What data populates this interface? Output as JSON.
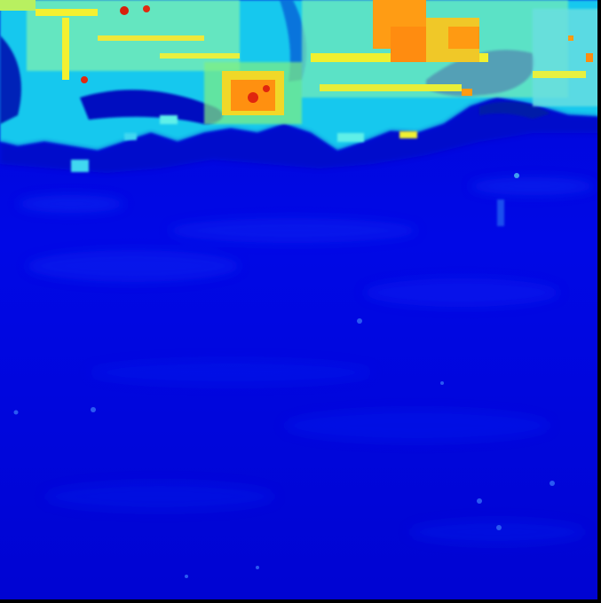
{
  "image": {
    "colormap": "jet",
    "colors": {
      "deep": "#0000b4",
      "water": "#0008e6",
      "water_light": "#0a2cf0",
      "shore_dark": "#001a9a",
      "cyan": "#19d6f0",
      "cyan_light": "#5ff0e8",
      "green": "#6cf08c",
      "yellow": "#f0f030",
      "orange": "#ff9a12",
      "red": "#e02a10",
      "edge": "#000000"
    }
  }
}
